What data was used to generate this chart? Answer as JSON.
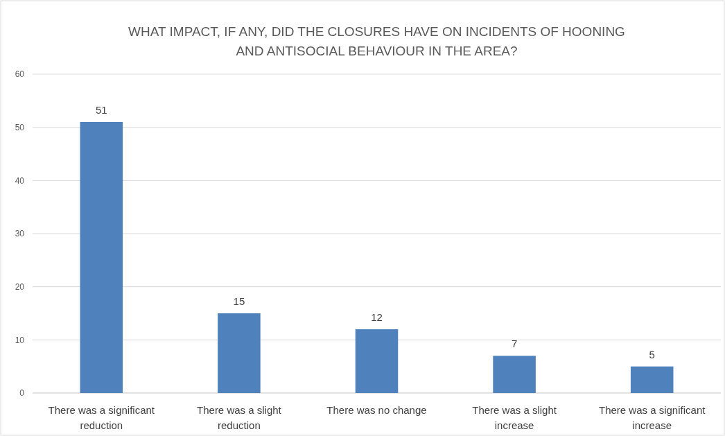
{
  "chart_data": {
    "type": "bar",
    "title": "WHAT IMPACT, IF ANY, DID THE CLOSURES HAVE ON INCIDENTS OF HOONING AND ANTISOCIAL BEHAVIOUR IN THE AREA?",
    "categories": [
      "There was a significant reduction",
      "There was a slight reduction",
      "There was no change",
      "There was a slight increase",
      "There was a significant increase"
    ],
    "values": [
      51,
      15,
      12,
      7,
      5
    ],
    "color": "#4f81bd",
    "ylim": [
      0,
      60
    ],
    "yticks": [
      0,
      10,
      20,
      30,
      40,
      50,
      60
    ],
    "grid": true,
    "data_labels": true
  }
}
